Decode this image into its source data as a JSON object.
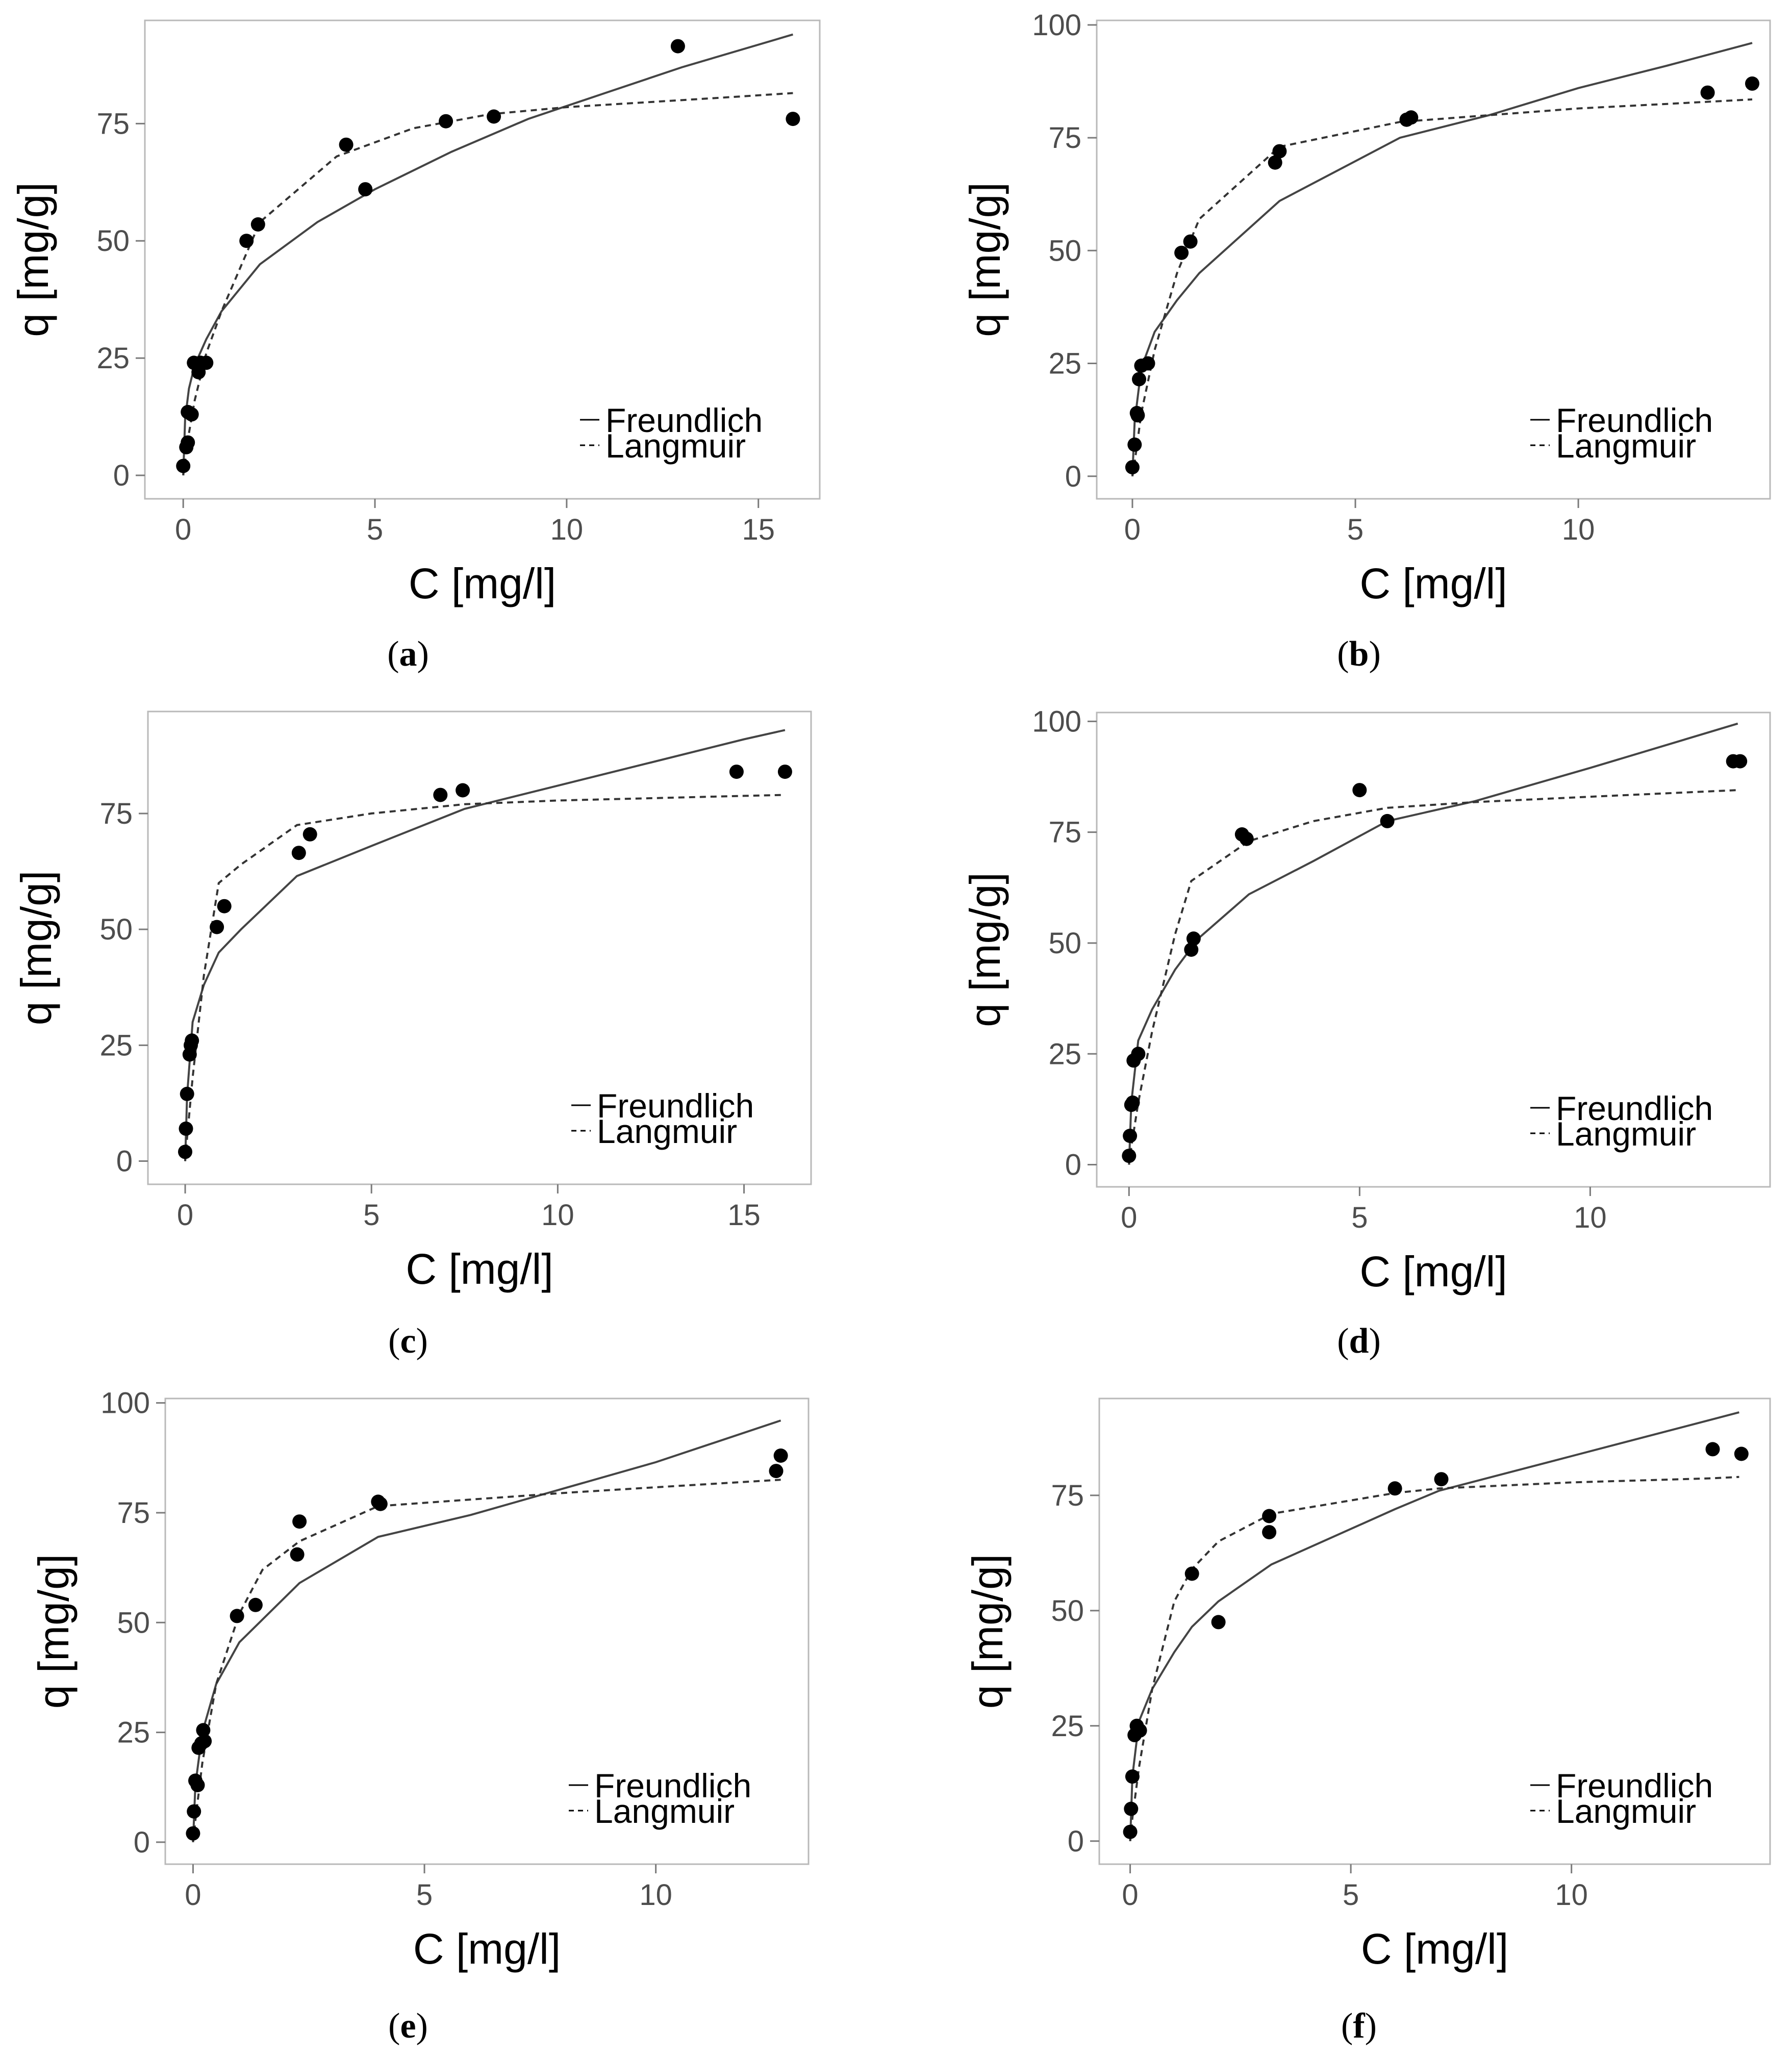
{
  "figure": {
    "legend": {
      "solid": "Freundlich",
      "dashed": "Langmuir"
    },
    "xlabel": "C [mg/l]",
    "ylabel": "q [mg/g]"
  },
  "chart_data": [
    {
      "type": "scatter",
      "panel": "a",
      "caption_open": "(",
      "caption_letter": "a",
      "caption_close": ")",
      "xlabel": "C [mg/l]",
      "ylabel": "q [mg/g]",
      "xlim": [
        -1.0,
        16.6
      ],
      "ylim": [
        -5,
        97
      ],
      "xticks": [
        0,
        5,
        10,
        15
      ],
      "yticks": [
        0,
        25,
        50,
        75
      ],
      "xtick_labels": [
        "0",
        "5",
        "10",
        "15"
      ],
      "ytick_labels": [
        "0",
        "25",
        "50",
        "75"
      ],
      "grid": false,
      "legend_position": "bottom-right",
      "points": [
        [
          0.0,
          2
        ],
        [
          0.08,
          6
        ],
        [
          0.12,
          7
        ],
        [
          0.12,
          13.5
        ],
        [
          0.22,
          13
        ],
        [
          0.28,
          24
        ],
        [
          0.4,
          22
        ],
        [
          0.45,
          24
        ],
        [
          0.6,
          24
        ],
        [
          1.65,
          50
        ],
        [
          1.95,
          53.5
        ],
        [
          4.25,
          70.5
        ],
        [
          4.75,
          61
        ],
        [
          6.85,
          75.5
        ],
        [
          8.1,
          76.5
        ],
        [
          12.9,
          91.5
        ],
        [
          15.9,
          76
        ]
      ],
      "series": [
        {
          "name": "Freundlich",
          "style": "solid",
          "x": [
            0,
            0.05,
            0.15,
            0.3,
            0.6,
            1.0,
            2.0,
            3.5,
            5.0,
            7.0,
            9.0,
            11.0,
            13.0,
            15.9
          ],
          "y": [
            0,
            12,
            18.5,
            23.5,
            29,
            35,
            45,
            54,
            61,
            69,
            76,
            81.5,
            87,
            94
          ]
        },
        {
          "name": "Langmuir",
          "style": "dashed",
          "x": [
            0,
            0.05,
            0.15,
            0.3,
            0.6,
            1.0,
            2.0,
            4.0,
            6.0,
            8.0,
            10.0,
            12.0,
            14.0,
            15.9
          ],
          "y": [
            0,
            3,
            9,
            16,
            26,
            35,
            54,
            68,
            74,
            77,
            78.5,
            79.5,
            80.5,
            81.5
          ]
        }
      ]
    },
    {
      "type": "scatter",
      "panel": "b",
      "caption_open": "(",
      "caption_letter": "b",
      "caption_close": ")",
      "xlabel": "C [mg/l]",
      "ylabel": "q [mg/g]",
      "xlim": [
        -0.8,
        14.3
      ],
      "ylim": [
        -5,
        101
      ],
      "xticks": [
        0,
        5,
        10
      ],
      "yticks": [
        0,
        25,
        50,
        75,
        100
      ],
      "xtick_labels": [
        "0",
        "5",
        "10"
      ],
      "ytick_labels": [
        "0",
        "25",
        "50",
        "75",
        "100"
      ],
      "grid": false,
      "legend_position": "bottom-right",
      "points": [
        [
          0.0,
          2
        ],
        [
          0.05,
          7
        ],
        [
          0.1,
          14
        ],
        [
          0.12,
          13.5
        ],
        [
          0.15,
          21.5
        ],
        [
          0.2,
          24.5
        ],
        [
          0.35,
          25
        ],
        [
          1.1,
          49.5
        ],
        [
          1.3,
          52
        ],
        [
          3.2,
          69.5
        ],
        [
          3.3,
          72
        ],
        [
          6.15,
          79
        ],
        [
          6.25,
          79.5
        ],
        [
          12.9,
          85
        ],
        [
          13.9,
          87
        ]
      ],
      "series": [
        {
          "name": "Freundlich",
          "style": "solid",
          "x": [
            0,
            0.05,
            0.2,
            0.5,
            1.0,
            1.5,
            3.3,
            6.0,
            8.0,
            10.0,
            12.0,
            13.9
          ],
          "y": [
            0,
            12,
            24,
            32,
            39,
            45,
            61,
            75,
            80,
            86,
            91,
            96
          ]
        },
        {
          "name": "Langmuir",
          "style": "dashed",
          "x": [
            0,
            0.05,
            0.2,
            0.5,
            1.0,
            1.5,
            3.3,
            6.0,
            8.0,
            10.0,
            12.0,
            13.9
          ],
          "y": [
            0,
            3,
            14,
            28,
            45,
            57,
            73,
            78.5,
            80,
            81.5,
            82.5,
            83.5
          ]
        }
      ]
    },
    {
      "type": "scatter",
      "panel": "c",
      "caption_open": "(",
      "caption_letter": "c",
      "caption_close": ")",
      "xlabel": "C [mg/l]",
      "ylabel": "q [mg/g]",
      "xlim": [
        -1.0,
        16.8
      ],
      "ylim": [
        -5,
        97
      ],
      "xticks": [
        0,
        5,
        10,
        15
      ],
      "yticks": [
        0,
        25,
        50,
        75
      ],
      "xtick_labels": [
        "0",
        "5",
        "10",
        "15"
      ],
      "ytick_labels": [
        "0",
        "25",
        "50",
        "75"
      ],
      "grid": false,
      "legend_position": "bottom-right",
      "points": [
        [
          0.0,
          2
        ],
        [
          0.02,
          7
        ],
        [
          0.05,
          14.5
        ],
        [
          0.12,
          23
        ],
        [
          0.15,
          25
        ],
        [
          0.18,
          26
        ],
        [
          0.85,
          50.5
        ],
        [
          1.05,
          55
        ],
        [
          3.05,
          66.5
        ],
        [
          3.35,
          70.5
        ],
        [
          6.85,
          79
        ],
        [
          7.45,
          80
        ],
        [
          14.8,
          84
        ],
        [
          16.1,
          84
        ]
      ],
      "series": [
        {
          "name": "Freundlich",
          "style": "solid",
          "x": [
            0,
            0.05,
            0.2,
            0.5,
            0.9,
            1.5,
            3.0,
            5.0,
            7.5,
            10.0,
            12.5,
            15.0,
            16.1
          ],
          "y": [
            0,
            14,
            30,
            38,
            45,
            50,
            61.5,
            68,
            76,
            81,
            86,
            91,
            93
          ]
        },
        {
          "name": "Langmuir",
          "style": "dashed",
          "x": [
            0,
            0.05,
            0.2,
            0.5,
            0.9,
            1.5,
            3.0,
            5.0,
            7.5,
            10.0,
            12.5,
            15.0,
            16.1
          ],
          "y": [
            0,
            5,
            18,
            40,
            60,
            64,
            72.5,
            75,
            77,
            77.8,
            78.3,
            78.8,
            79
          ]
        }
      ]
    },
    {
      "type": "scatter",
      "panel": "d",
      "caption_open": "(",
      "caption_letter": "d",
      "caption_close": ")",
      "xlabel": "C [mg/l]",
      "ylabel": "q [mg/g]",
      "xlim": [
        -0.7,
        13.9
      ],
      "ylim": [
        -5,
        102
      ],
      "xticks": [
        0,
        5,
        10
      ],
      "yticks": [
        0,
        25,
        50,
        75,
        100
      ],
      "xtick_labels": [
        "0",
        "5",
        "10"
      ],
      "ytick_labels": [
        "0",
        "25",
        "50",
        "75",
        "100"
      ],
      "grid": false,
      "legend_position": "bottom-right",
      "points": [
        [
          0.0,
          2
        ],
        [
          0.02,
          6.5
        ],
        [
          0.05,
          13.5
        ],
        [
          0.08,
          14
        ],
        [
          0.1,
          23.5
        ],
        [
          0.2,
          25
        ],
        [
          1.35,
          48.5
        ],
        [
          1.4,
          51
        ],
        [
          2.45,
          74.5
        ],
        [
          2.55,
          73.5
        ],
        [
          5.0,
          84.5
        ],
        [
          5.6,
          77.5
        ],
        [
          13.1,
          91
        ],
        [
          13.25,
          91
        ]
      ],
      "series": [
        {
          "name": "Freundlich",
          "style": "solid",
          "x": [
            0,
            0.05,
            0.2,
            0.5,
            1.0,
            1.5,
            2.6,
            4.0,
            5.6,
            7.5,
            10.0,
            13.2
          ],
          "y": [
            0,
            14,
            28,
            35,
            44,
            51,
            61,
            68.5,
            77.5,
            82,
            89.5,
            99.5
          ]
        },
        {
          "name": "Langmuir",
          "style": "dashed",
          "x": [
            0,
            0.05,
            0.2,
            0.5,
            1.0,
            1.35,
            2.6,
            4.0,
            5.6,
            7.5,
            10.0,
            13.2
          ],
          "y": [
            0,
            4,
            14,
            30,
            52,
            64,
            73,
            77.5,
            80.5,
            81.8,
            83,
            84.5
          ]
        }
      ]
    },
    {
      "type": "scatter",
      "panel": "e",
      "caption_open": "(",
      "caption_letter": "e",
      "caption_close": ")",
      "xlabel": "C [mg/l]",
      "ylabel": "q [mg/g]",
      "xlim": [
        -0.6,
        13.3
      ],
      "ylim": [
        -5,
        101
      ],
      "xticks": [
        0,
        5,
        10
      ],
      "yticks": [
        0,
        25,
        50,
        75,
        100
      ],
      "xtick_labels": [
        "0",
        "5",
        "10"
      ],
      "ytick_labels": [
        "0",
        "25",
        "50",
        "75",
        "100"
      ],
      "grid": false,
      "legend_position": "bottom-right",
      "points": [
        [
          0.0,
          2
        ],
        [
          0.02,
          7
        ],
        [
          0.05,
          14
        ],
        [
          0.1,
          13
        ],
        [
          0.12,
          21.5
        ],
        [
          0.18,
          22.5
        ],
        [
          0.25,
          23
        ],
        [
          0.22,
          25.5
        ],
        [
          0.95,
          51.5
        ],
        [
          1.35,
          54
        ],
        [
          2.25,
          65.5
        ],
        [
          2.3,
          73
        ],
        [
          4.0,
          77.5
        ],
        [
          4.05,
          77
        ],
        [
          12.6,
          84.5
        ],
        [
          12.7,
          88
        ]
      ],
      "series": [
        {
          "name": "Freundlich",
          "style": "solid",
          "x": [
            0,
            0.05,
            0.2,
            0.5,
            1.0,
            2.3,
            4.0,
            6.0,
            8.0,
            10.0,
            12.7
          ],
          "y": [
            0,
            13,
            25,
            36,
            45.5,
            59,
            69.5,
            74.5,
            80.5,
            86.5,
            96
          ]
        },
        {
          "name": "Langmuir",
          "style": "dashed",
          "x": [
            0,
            0.05,
            0.2,
            0.5,
            1.0,
            1.5,
            2.3,
            4.0,
            6.0,
            8.0,
            10.0,
            12.7
          ],
          "y": [
            0,
            5,
            18,
            36,
            52,
            62,
            68.5,
            76.5,
            78,
            79.5,
            80.8,
            82.5
          ]
        }
      ]
    },
    {
      "type": "scatter",
      "panel": "f",
      "caption_open": "(",
      "caption_letter": "f",
      "caption_close": ")",
      "xlabel": "C [mg/l]",
      "ylabel": "q [mg/g]",
      "xlim": [
        -0.7,
        14.5
      ],
      "ylim": [
        -5,
        96
      ],
      "xticks": [
        0,
        5,
        10
      ],
      "yticks": [
        0,
        25,
        50,
        75
      ],
      "xtick_labels": [
        "0",
        "5",
        "10"
      ],
      "ytick_labels": [
        "0",
        "25",
        "50",
        "75"
      ],
      "grid": false,
      "legend_position": "bottom-right",
      "points": [
        [
          0.0,
          2
        ],
        [
          0.02,
          7
        ],
        [
          0.05,
          14
        ],
        [
          0.1,
          23
        ],
        [
          0.15,
          25
        ],
        [
          0.22,
          24
        ],
        [
          1.4,
          58
        ],
        [
          2.0,
          47.5
        ],
        [
          3.15,
          70.5
        ],
        [
          3.15,
          67
        ],
        [
          6.0,
          76.5
        ],
        [
          7.05,
          78.5
        ],
        [
          13.2,
          85
        ],
        [
          13.85,
          84
        ]
      ],
      "series": [
        {
          "name": "Freundlich",
          "style": "solid",
          "x": [
            0,
            0.05,
            0.2,
            0.5,
            1.0,
            1.4,
            2.0,
            3.2,
            6.0,
            7.0,
            10.0,
            13.2,
            13.8
          ],
          "y": [
            0,
            14,
            26,
            33,
            41,
            46.5,
            52,
            60,
            72,
            76,
            83.5,
            91.5,
            93
          ]
        },
        {
          "name": "Langmuir",
          "style": "dashed",
          "x": [
            0,
            0.05,
            0.2,
            0.5,
            1.0,
            1.4,
            2.0,
            3.2,
            6.0,
            7.0,
            10.0,
            13.2,
            13.8
          ],
          "y": [
            0,
            5,
            16,
            33,
            52,
            59,
            65,
            71,
            75.5,
            76.5,
            77.8,
            78.7,
            79
          ]
        }
      ]
    }
  ]
}
